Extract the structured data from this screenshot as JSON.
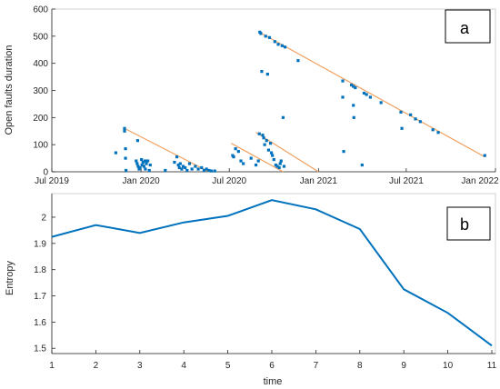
{
  "chart_data": [
    {
      "type": "scatter",
      "panel_label": "a",
      "title": "",
      "xlabel": "",
      "ylabel": "Open faults duration",
      "xlim": [
        "2019-07-01",
        "2022-01-01"
      ],
      "ylim": [
        0,
        600
      ],
      "x_ticks": [
        "Jul 2019",
        "Jan 2020",
        "Jul 2020",
        "Jan 2021",
        "Jul 2021",
        "Jan 2022"
      ],
      "y_ticks": [
        0,
        100,
        200,
        300,
        400,
        500,
        600
      ],
      "grid": false,
      "colors": {
        "points": "#0072BD",
        "trend": "#F0A060"
      },
      "points": [
        {
          "x": "2019-11-10",
          "y": 70
        },
        {
          "x": "2019-11-28",
          "y": 160
        },
        {
          "x": "2019-11-28",
          "y": 150
        },
        {
          "x": "2019-11-30",
          "y": 85
        },
        {
          "x": "2019-11-30",
          "y": 50
        },
        {
          "x": "2019-12-01",
          "y": 5
        },
        {
          "x": "2019-12-25",
          "y": 115
        },
        {
          "x": "2019-12-22",
          "y": 40
        },
        {
          "x": "2019-12-24",
          "y": 30
        },
        {
          "x": "2019-12-26",
          "y": 20
        },
        {
          "x": "2019-12-28",
          "y": 10
        },
        {
          "x": "2019-12-30",
          "y": 15
        },
        {
          "x": "2020-01-02",
          "y": 45
        },
        {
          "x": "2020-01-03",
          "y": 25
        },
        {
          "x": "2020-01-05",
          "y": 35
        },
        {
          "x": "2020-01-07",
          "y": 20
        },
        {
          "x": "2020-01-09",
          "y": 40
        },
        {
          "x": "2020-01-10",
          "y": 10
        },
        {
          "x": "2020-01-12",
          "y": 30
        },
        {
          "x": "2020-01-15",
          "y": 40
        },
        {
          "x": "2020-01-18",
          "y": 5
        },
        {
          "x": "2020-01-20",
          "y": 25
        },
        {
          "x": "2020-02-20",
          "y": 5
        },
        {
          "x": "2020-03-10",
          "y": 35
        },
        {
          "x": "2020-03-15",
          "y": 55
        },
        {
          "x": "2020-03-18",
          "y": 25
        },
        {
          "x": "2020-03-20",
          "y": 15
        },
        {
          "x": "2020-03-22",
          "y": 30
        },
        {
          "x": "2020-03-25",
          "y": 10
        },
        {
          "x": "2020-03-28",
          "y": 20
        },
        {
          "x": "2020-04-01",
          "y": 15
        },
        {
          "x": "2020-04-05",
          "y": 5
        },
        {
          "x": "2020-04-10",
          "y": 30
        },
        {
          "x": "2020-04-15",
          "y": 10
        },
        {
          "x": "2020-04-22",
          "y": 20
        },
        {
          "x": "2020-04-28",
          "y": 10
        },
        {
          "x": "2020-05-05",
          "y": 15
        },
        {
          "x": "2020-05-10",
          "y": 5
        },
        {
          "x": "2020-05-15",
          "y": 10
        },
        {
          "x": "2020-05-20",
          "y": 5
        },
        {
          "x": "2020-05-25",
          "y": 3
        },
        {
          "x": "2020-06-01",
          "y": 3
        },
        {
          "x": "2020-07-08",
          "y": 60
        },
        {
          "x": "2020-07-10",
          "y": 55
        },
        {
          "x": "2020-07-14",
          "y": 85
        },
        {
          "x": "2020-07-20",
          "y": 75
        },
        {
          "x": "2020-07-25",
          "y": 40
        },
        {
          "x": "2020-07-30",
          "y": 30
        },
        {
          "x": "2020-08-15",
          "y": 50
        },
        {
          "x": "2020-08-25",
          "y": 25
        },
        {
          "x": "2020-08-30",
          "y": 40
        },
        {
          "x": "2020-09-01",
          "y": 140
        },
        {
          "x": "2020-09-02",
          "y": 515
        },
        {
          "x": "2020-09-04",
          "y": 510
        },
        {
          "x": "2020-09-06",
          "y": 370
        },
        {
          "x": "2020-09-08",
          "y": 135
        },
        {
          "x": "2020-09-10",
          "y": 125
        },
        {
          "x": "2020-09-12",
          "y": 100
        },
        {
          "x": "2020-09-14",
          "y": 500
        },
        {
          "x": "2020-09-16",
          "y": 115
        },
        {
          "x": "2020-09-18",
          "y": 360
        },
        {
          "x": "2020-09-20",
          "y": 80
        },
        {
          "x": "2020-09-22",
          "y": 495
        },
        {
          "x": "2020-09-24",
          "y": 105
        },
        {
          "x": "2020-09-26",
          "y": 70
        },
        {
          "x": "2020-09-28",
          "y": 60
        },
        {
          "x": "2020-10-01",
          "y": 45
        },
        {
          "x": "2020-10-03",
          "y": 480
        },
        {
          "x": "2020-10-05",
          "y": 25
        },
        {
          "x": "2020-10-08",
          "y": 20
        },
        {
          "x": "2020-10-10",
          "y": 470
        },
        {
          "x": "2020-10-12",
          "y": 15
        },
        {
          "x": "2020-10-14",
          "y": 30
        },
        {
          "x": "2020-10-16",
          "y": 40
        },
        {
          "x": "2020-10-18",
          "y": 465
        },
        {
          "x": "2020-10-20",
          "y": 200
        },
        {
          "x": "2020-10-22",
          "y": 20
        },
        {
          "x": "2020-10-24",
          "y": 460
        },
        {
          "x": "2020-11-20",
          "y": 410
        },
        {
          "x": "2021-02-20",
          "y": 335
        },
        {
          "x": "2021-02-20",
          "y": 275
        },
        {
          "x": "2021-02-22",
          "y": 75
        },
        {
          "x": "2021-03-10",
          "y": 320
        },
        {
          "x": "2021-03-14",
          "y": 315
        },
        {
          "x": "2021-03-14",
          "y": 245
        },
        {
          "x": "2021-03-15",
          "y": 200
        },
        {
          "x": "2021-03-18",
          "y": 310
        },
        {
          "x": "2021-04-01",
          "y": 25
        },
        {
          "x": "2021-04-05",
          "y": 290
        },
        {
          "x": "2021-04-10",
          "y": 285
        },
        {
          "x": "2021-04-18",
          "y": 275
        },
        {
          "x": "2021-05-10",
          "y": 255
        },
        {
          "x": "2021-06-20",
          "y": 220
        },
        {
          "x": "2021-06-22",
          "y": 160
        },
        {
          "x": "2021-07-10",
          "y": 210
        },
        {
          "x": "2021-07-20",
          "y": 195
        },
        {
          "x": "2021-07-30",
          "y": 185
        },
        {
          "x": "2021-08-25",
          "y": 155
        },
        {
          "x": "2021-09-05",
          "y": 145
        },
        {
          "x": "2021-12-10",
          "y": 60
        }
      ],
      "trend_lines": [
        {
          "x": [
            "2019-11-28",
            "2020-05-20"
          ],
          "y": [
            160,
            0
          ]
        },
        {
          "x": [
            "2020-07-05",
            "2020-10-20"
          ],
          "y": [
            105,
            0
          ]
        },
        {
          "x": [
            "2020-08-25",
            "2021-01-01"
          ],
          "y": [
            145,
            0
          ]
        },
        {
          "x": [
            "2020-09-01",
            "2021-12-10"
          ],
          "y": [
            515,
            55
          ]
        }
      ]
    },
    {
      "type": "line",
      "panel_label": "b",
      "title": "",
      "xlabel": "time",
      "ylabel": "Entropy",
      "x": [
        1,
        2,
        3,
        4,
        5,
        6,
        7,
        8,
        9,
        10,
        11
      ],
      "y": [
        1.925,
        1.97,
        1.94,
        1.98,
        2.005,
        2.065,
        2.03,
        1.955,
        1.725,
        1.635,
        1.51
      ],
      "xlim": [
        1,
        11
      ],
      "ylim": [
        1.48,
        2.09
      ],
      "y_ticks": [
        1.5,
        1.6,
        1.7,
        1.8,
        1.9,
        2
      ],
      "x_ticks": [
        1,
        2,
        3,
        4,
        5,
        6,
        7,
        8,
        9,
        10,
        11
      ],
      "grid": false,
      "colors": {
        "line": "#0072BD"
      }
    }
  ]
}
